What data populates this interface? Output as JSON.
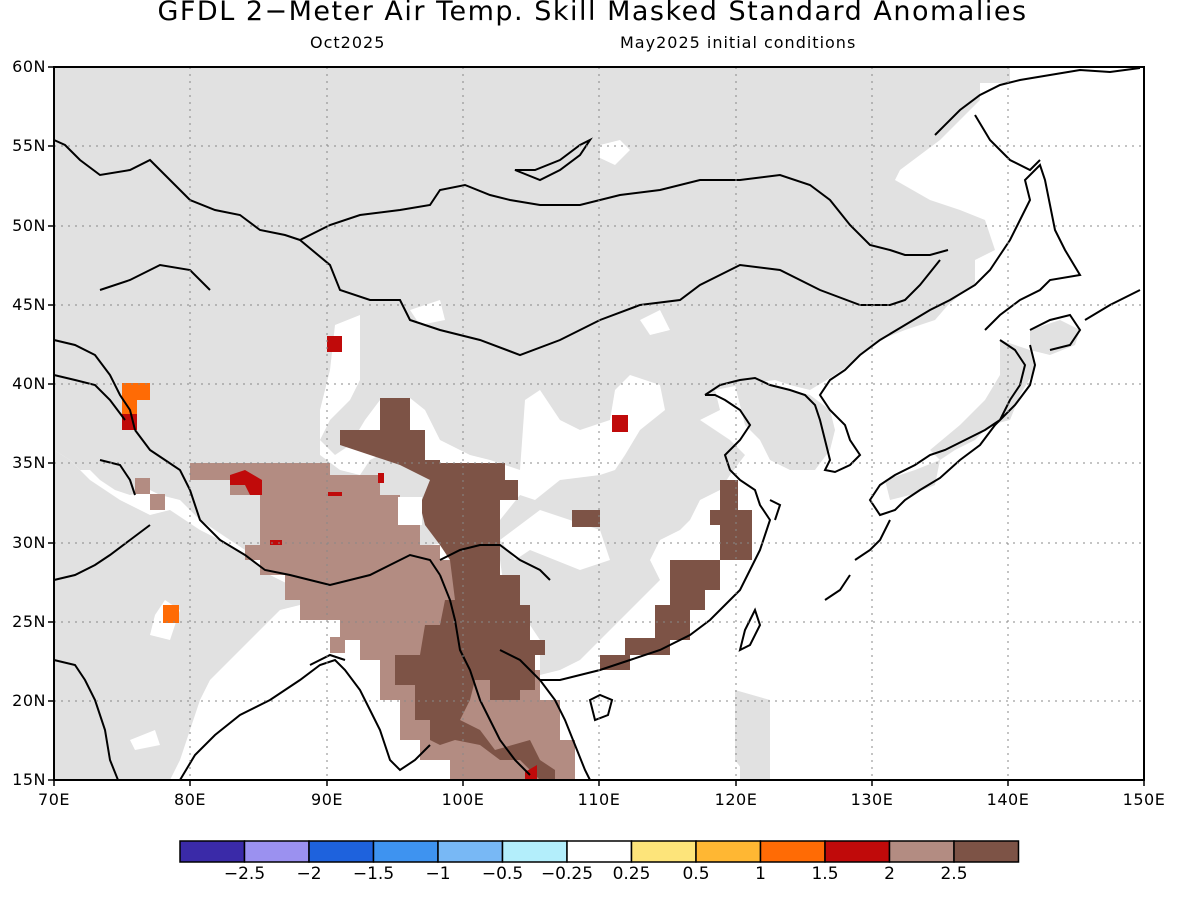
{
  "title": "GFDL 2−Meter Air Temp. Skill Masked Standard Anomalies",
  "subtitle_left": "Oct2025",
  "subtitle_right": "May2025 initial conditions",
  "map": {
    "lat_labels": [
      "60N",
      "55N",
      "50N",
      "45N",
      "40N",
      "35N",
      "30N",
      "25N",
      "20N",
      "15N"
    ],
    "lon_labels": [
      "70E",
      "80E",
      "90E",
      "100E",
      "110E",
      "120E",
      "130E",
      "140E",
      "150E"
    ],
    "lon_range": [
      70,
      150
    ],
    "lat_range": [
      15,
      60
    ],
    "gridlines": "dotted",
    "masked_color": "#e1e1e1",
    "coastline_color": "#000000"
  },
  "colorbar": {
    "colors": [
      "#3a2aa8",
      "#9b91f0",
      "#1e62dd",
      "#3e93f0",
      "#78b8f5",
      "#b3eefb",
      "#ffffff",
      "#fde47a",
      "#ffb733",
      "#ff6b05",
      "#c00a0a",
      "#b38c82",
      "#7d5346"
    ],
    "labels": [
      "−2.5",
      "−2",
      "−1.5",
      "−1",
      "−0.5",
      "−0.25",
      "0.25",
      "0.5",
      "1",
      "1.5",
      "2",
      "2.5"
    ]
  }
}
